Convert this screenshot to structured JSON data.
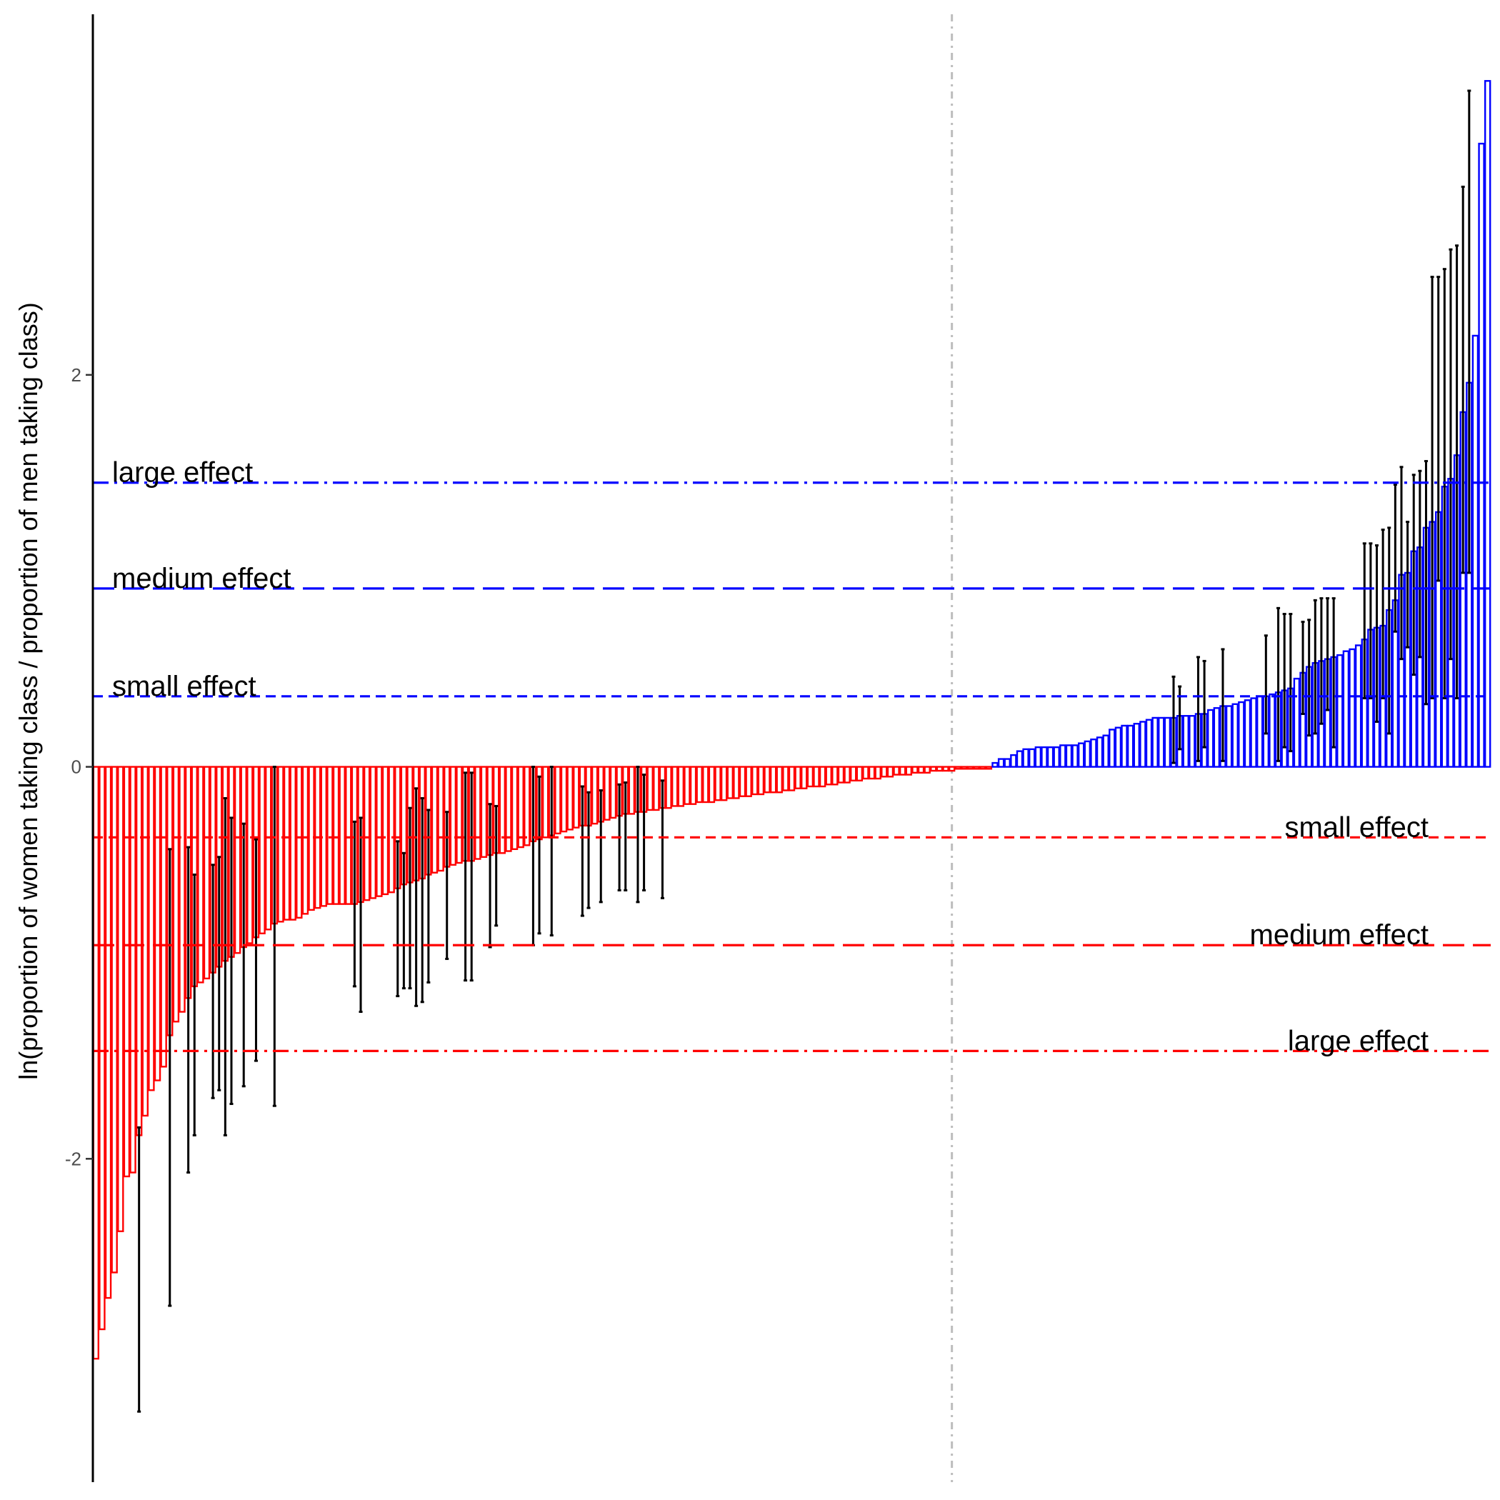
{
  "chart_data": {
    "type": "bar",
    "title": "",
    "xlabel": "",
    "ylabel": "ln(proportion of women taking class / proportion of men taking class)",
    "ylim": [
      -3.65,
      3.84
    ],
    "yticks": [
      -2,
      0,
      2
    ],
    "grid": false,
    "legend": "none",
    "colors": {
      "negative": "#ff0000",
      "positive": "#0000ff",
      "error_bar": "#000000",
      "midline": "#bdbdbd",
      "axis": "#000000"
    },
    "midline_index": 139,
    "reference_lines": [
      {
        "label": "large effect",
        "y": 1.45,
        "color": "#0000ff",
        "style": "dashdot"
      },
      {
        "label": "medium effect",
        "y": 0.91,
        "color": "#0000ff",
        "style": "longdash"
      },
      {
        "label": "small effect",
        "y": 0.36,
        "color": "#0000ff",
        "style": "dashed"
      },
      {
        "label": "small effect",
        "y": -0.36,
        "color": "#ff0000",
        "style": "dashed"
      },
      {
        "label": "medium effect",
        "y": -0.91,
        "color": "#ff0000",
        "style": "longdash"
      },
      {
        "label": "large effect",
        "y": -1.45,
        "color": "#ff0000",
        "style": "dashdot"
      }
    ],
    "series": [
      {
        "values": [
          -3.02,
          -2.87,
          -2.71,
          -2.58,
          -2.37,
          -2.09,
          -2.07,
          -1.88,
          -1.78,
          -1.65,
          -1.6,
          -1.53,
          -1.37,
          -1.3,
          -1.25,
          -1.18,
          -1.12,
          -1.1,
          -1.08,
          -1.05,
          -1.02,
          -0.99,
          -0.97,
          -0.95,
          -0.92,
          -0.9,
          -0.87,
          -0.85,
          -0.83,
          -0.8,
          -0.79,
          -0.78,
          -0.78,
          -0.77,
          -0.75,
          -0.73,
          -0.72,
          -0.71,
          -0.7,
          -0.7,
          -0.7,
          -0.7,
          -0.7,
          -0.69,
          -0.68,
          -0.67,
          -0.66,
          -0.65,
          -0.64,
          -0.62,
          -0.6,
          -0.59,
          -0.58,
          -0.57,
          -0.55,
          -0.54,
          -0.53,
          -0.51,
          -0.5,
          -0.49,
          -0.48,
          -0.48,
          -0.47,
          -0.46,
          -0.45,
          -0.44,
          -0.44,
          -0.43,
          -0.42,
          -0.41,
          -0.4,
          -0.38,
          -0.37,
          -0.36,
          -0.35,
          -0.34,
          -0.33,
          -0.32,
          -0.31,
          -0.3,
          -0.3,
          -0.29,
          -0.28,
          -0.27,
          -0.26,
          -0.25,
          -0.24,
          -0.24,
          -0.23,
          -0.23,
          -0.22,
          -0.22,
          -0.21,
          -0.21,
          -0.2,
          -0.2,
          -0.19,
          -0.19,
          -0.18,
          -0.18,
          -0.18,
          -0.17,
          -0.17,
          -0.16,
          -0.16,
          -0.15,
          -0.15,
          -0.14,
          -0.14,
          -0.13,
          -0.13,
          -0.13,
          -0.12,
          -0.12,
          -0.11,
          -0.11,
          -0.1,
          -0.1,
          -0.1,
          -0.09,
          -0.09,
          -0.08,
          -0.08,
          -0.07,
          -0.07,
          -0.06,
          -0.06,
          -0.06,
          -0.05,
          -0.05,
          -0.04,
          -0.04,
          -0.04,
          -0.03,
          -0.03,
          -0.03,
          -0.02,
          -0.02,
          -0.02,
          -0.02,
          -0.01,
          -0.01,
          -0.01,
          -0.01,
          -0.01,
          -0.01,
          0.02,
          0.04,
          0.04,
          0.06,
          0.08,
          0.09,
          0.09,
          0.1,
          0.1,
          0.1,
          0.1,
          0.11,
          0.11,
          0.11,
          0.12,
          0.13,
          0.14,
          0.15,
          0.16,
          0.19,
          0.2,
          0.21,
          0.21,
          0.22,
          0.23,
          0.24,
          0.25,
          0.25,
          0.25,
          0.25,
          0.26,
          0.26,
          0.26,
          0.27,
          0.27,
          0.29,
          0.3,
          0.31,
          0.31,
          0.32,
          0.33,
          0.34,
          0.35,
          0.36,
          0.36,
          0.37,
          0.38,
          0.39,
          0.4,
          0.45,
          0.48,
          0.51,
          0.53,
          0.54,
          0.55,
          0.56,
          0.57,
          0.59,
          0.6,
          0.62,
          0.65,
          0.7,
          0.71,
          0.72,
          0.8,
          0.85,
          0.98,
          0.99,
          1.1,
          1.12,
          1.22,
          1.25,
          1.3,
          1.43,
          1.47,
          1.59,
          1.81,
          1.96,
          2.2,
          3.18,
          3.5
        ]
      }
    ],
    "error_bars": [
      {
        "index": 7,
        "low": -3.29,
        "high": -1.84
      },
      {
        "index": 12,
        "low": -2.75,
        "high": -0.42
      },
      {
        "index": 15,
        "low": -2.07,
        "high": -0.41
      },
      {
        "index": 16,
        "low": -1.88,
        "high": -0.55
      },
      {
        "index": 19,
        "low": -1.69,
        "high": -0.5
      },
      {
        "index": 20,
        "low": -1.65,
        "high": -0.46
      },
      {
        "index": 21,
        "low": -1.88,
        "high": -0.16
      },
      {
        "index": 22,
        "low": -1.72,
        "high": -0.26
      },
      {
        "index": 24,
        "low": -1.63,
        "high": -0.29
      },
      {
        "index": 26,
        "low": -1.5,
        "high": -0.37
      },
      {
        "index": 29,
        "low": -1.73,
        "high": 0.0
      },
      {
        "index": 42,
        "low": -1.12,
        "high": -0.28
      },
      {
        "index": 43,
        "low": -1.25,
        "high": -0.26
      },
      {
        "index": 49,
        "low": -1.17,
        "high": -0.38
      },
      {
        "index": 50,
        "low": -1.13,
        "high": -0.44
      },
      {
        "index": 51,
        "low": -1.13,
        "high": -0.21
      },
      {
        "index": 52,
        "low": -1.22,
        "high": -0.11
      },
      {
        "index": 53,
        "low": -1.2,
        "high": -0.16
      },
      {
        "index": 54,
        "low": -1.1,
        "high": -0.22
      },
      {
        "index": 57,
        "low": -0.98,
        "high": -0.23
      },
      {
        "index": 60,
        "low": -1.09,
        "high": -0.03
      },
      {
        "index": 61,
        "low": -1.09,
        "high": -0.03
      },
      {
        "index": 64,
        "low": -0.92,
        "high": -0.19
      },
      {
        "index": 65,
        "low": -0.81,
        "high": -0.2
      },
      {
        "index": 71,
        "low": -0.91,
        "high": 0.0
      },
      {
        "index": 72,
        "low": -0.85,
        "high": -0.05
      },
      {
        "index": 74,
        "low": -0.86,
        "high": 0.0
      },
      {
        "index": 79,
        "low": -0.76,
        "high": -0.1
      },
      {
        "index": 80,
        "low": -0.72,
        "high": -0.13
      },
      {
        "index": 82,
        "low": -0.69,
        "high": -0.12
      },
      {
        "index": 85,
        "low": -0.63,
        "high": -0.09
      },
      {
        "index": 86,
        "low": -0.63,
        "high": -0.08
      },
      {
        "index": 88,
        "low": -0.69,
        "high": 0.0
      },
      {
        "index": 89,
        "low": -0.63,
        "high": -0.04
      },
      {
        "index": 92,
        "low": -0.67,
        "high": -0.07
      },
      {
        "index": 175,
        "low": 0.02,
        "high": 0.46
      },
      {
        "index": 176,
        "low": 0.09,
        "high": 0.41
      },
      {
        "index": 179,
        "low": 0.03,
        "high": 0.56
      },
      {
        "index": 180,
        "low": 0.1,
        "high": 0.54
      },
      {
        "index": 183,
        "low": 0.03,
        "high": 0.6
      },
      {
        "index": 190,
        "low": 0.17,
        "high": 0.67
      },
      {
        "index": 192,
        "low": 0.03,
        "high": 0.81
      },
      {
        "index": 193,
        "low": 0.1,
        "high": 0.78
      },
      {
        "index": 194,
        "low": 0.08,
        "high": 0.78
      },
      {
        "index": 196,
        "low": 0.27,
        "high": 0.74
      },
      {
        "index": 197,
        "low": 0.16,
        "high": 0.75
      },
      {
        "index": 198,
        "low": 0.17,
        "high": 0.85
      },
      {
        "index": 199,
        "low": 0.22,
        "high": 0.86
      },
      {
        "index": 200,
        "low": 0.29,
        "high": 0.86
      },
      {
        "index": 201,
        "low": 0.1,
        "high": 0.86
      },
      {
        "index": 206,
        "low": 0.35,
        "high": 1.14
      },
      {
        "index": 207,
        "low": 0.35,
        "high": 1.14
      },
      {
        "index": 208,
        "low": 0.23,
        "high": 1.13
      },
      {
        "index": 209,
        "low": 0.35,
        "high": 1.21
      },
      {
        "index": 210,
        "low": 0.17,
        "high": 1.22
      },
      {
        "index": 211,
        "low": 0.69,
        "high": 1.44
      },
      {
        "index": 212,
        "low": 0.55,
        "high": 1.53
      },
      {
        "index": 213,
        "low": 0.61,
        "high": 1.25
      },
      {
        "index": 214,
        "low": 0.47,
        "high": 1.49
      },
      {
        "index": 215,
        "low": 0.56,
        "high": 1.51
      },
      {
        "index": 216,
        "low": 0.32,
        "high": 1.56
      },
      {
        "index": 217,
        "low": 0.35,
        "high": 2.5
      },
      {
        "index": 218,
        "low": 0.95,
        "high": 2.5
      },
      {
        "index": 219,
        "low": 0.35,
        "high": 2.54
      },
      {
        "index": 220,
        "low": 0.55,
        "high": 2.64
      },
      {
        "index": 221,
        "low": 0.35,
        "high": 2.66
      },
      {
        "index": 222,
        "low": 0.99,
        "high": 2.96
      },
      {
        "index": 223,
        "low": 0.99,
        "high": 3.45
      }
    ]
  }
}
